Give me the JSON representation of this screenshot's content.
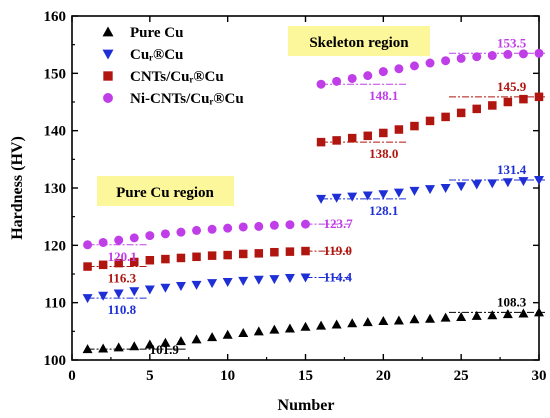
{
  "chart_data": {
    "type": "scatter",
    "xlabel": "Number",
    "ylabel": "Hardness (HV)",
    "xlim": [
      0,
      30
    ],
    "ylim": [
      100,
      160
    ],
    "xticks": [
      0,
      5,
      10,
      15,
      20,
      25,
      30
    ],
    "yticks": [
      100,
      110,
      120,
      130,
      140,
      150,
      160
    ],
    "grid": false,
    "legend_position": "top-left",
    "series": [
      {
        "name": "Pure Cu",
        "marker": "triangle-up",
        "color": "#000000",
        "x": [
          1,
          2,
          3,
          4,
          5,
          6,
          7,
          8,
          9,
          10,
          11,
          12,
          13,
          14,
          15,
          16,
          17,
          18,
          19,
          20,
          21,
          22,
          23,
          24,
          25,
          26,
          27,
          28,
          29,
          30
        ],
        "y": [
          101.9,
          102.0,
          102.2,
          102.4,
          102.7,
          103.0,
          103.3,
          103.6,
          104.0,
          104.4,
          104.7,
          105.0,
          105.3,
          105.5,
          105.8,
          106.0,
          106.2,
          106.4,
          106.6,
          106.8,
          106.9,
          107.1,
          107.2,
          107.4,
          107.5,
          107.7,
          107.8,
          108.0,
          108.1,
          108.3
        ],
        "annotation": {
          "label": "101.9",
          "x": 1,
          "y": 101.9
        },
        "annotation_end": {
          "label": "108.3",
          "x": 30,
          "y": 108.3
        }
      },
      {
        "name": "Cuᵣ®Cu",
        "marker": "triangle-down",
        "color": "#1f2fd6",
        "x": [
          1,
          2,
          3,
          4,
          5,
          6,
          7,
          8,
          9,
          10,
          11,
          12,
          13,
          14,
          15,
          16,
          17,
          18,
          19,
          20,
          21,
          22,
          23,
          24,
          25,
          26,
          27,
          28,
          29,
          30
        ],
        "y": [
          110.8,
          111.2,
          111.6,
          112.0,
          112.3,
          112.6,
          112.9,
          113.1,
          113.4,
          113.6,
          113.8,
          114.0,
          114.1,
          114.3,
          114.4,
          128.1,
          128.3,
          128.5,
          128.7,
          128.9,
          129.2,
          129.5,
          129.8,
          130.0,
          130.3,
          130.6,
          130.8,
          131.0,
          131.2,
          131.4
        ],
        "annotation": {
          "label": "110.8",
          "x": 1,
          "y": 110.8
        },
        "annotation_mid": {
          "label": "114.4",
          "x": 15,
          "y": 114.4
        },
        "annotation_mid2": {
          "label": "128.1",
          "x": 16,
          "y": 128.1
        },
        "annotation_end": {
          "label": "131.4",
          "x": 30,
          "y": 131.4
        }
      },
      {
        "name": "CNTs/Cuᵣ®Cu",
        "marker": "square",
        "color": "#b0150f",
        "x": [
          1,
          2,
          3,
          4,
          5,
          6,
          7,
          8,
          9,
          10,
          11,
          12,
          13,
          14,
          15,
          16,
          17,
          18,
          19,
          20,
          21,
          22,
          23,
          24,
          25,
          26,
          27,
          28,
          29,
          30
        ],
        "y": [
          116.3,
          116.6,
          116.9,
          117.1,
          117.4,
          117.6,
          117.8,
          118.0,
          118.2,
          118.3,
          118.5,
          118.6,
          118.8,
          118.9,
          119.0,
          138.0,
          138.3,
          138.7,
          139.1,
          139.6,
          140.2,
          140.8,
          141.7,
          142.4,
          143.1,
          143.8,
          144.4,
          145.0,
          145.5,
          145.9
        ],
        "annotation": {
          "label": "116.3",
          "x": 1,
          "y": 116.3
        },
        "annotation_mid": {
          "label": "119.0",
          "x": 15,
          "y": 119.0
        },
        "annotation_mid2": {
          "label": "138.0",
          "x": 16,
          "y": 138.0
        },
        "annotation_end": {
          "label": "145.9",
          "x": 30,
          "y": 145.9
        }
      },
      {
        "name": "Ni-CNTs/Cuᵣ®Cu",
        "marker": "circle",
        "color": "#c03ee8",
        "x": [
          1,
          2,
          3,
          4,
          5,
          6,
          7,
          8,
          9,
          10,
          11,
          12,
          13,
          14,
          15,
          16,
          17,
          18,
          19,
          20,
          21,
          22,
          23,
          24,
          25,
          26,
          27,
          28,
          29,
          30
        ],
        "y": [
          120.1,
          120.5,
          120.9,
          121.3,
          121.7,
          122.0,
          122.3,
          122.6,
          122.8,
          123.0,
          123.2,
          123.3,
          123.5,
          123.6,
          123.7,
          148.1,
          148.6,
          149.1,
          149.6,
          150.3,
          150.8,
          151.3,
          151.8,
          152.2,
          152.6,
          152.9,
          153.1,
          153.3,
          153.4,
          153.5
        ],
        "annotation": {
          "label": "120.1",
          "x": 1,
          "y": 120.1
        },
        "annotation_mid": {
          "label": "123.7",
          "x": 15,
          "y": 123.7
        },
        "annotation_mid2": {
          "label": "148.1",
          "x": 16,
          "y": 148.1
        },
        "annotation_end": {
          "label": "153.5",
          "x": 30,
          "y": 153.5
        }
      }
    ],
    "regions": [
      {
        "label": "Pure Cu region",
        "background": "#fbf79a"
      },
      {
        "label": "Skeleton region",
        "background": "#fbf79a"
      }
    ]
  }
}
